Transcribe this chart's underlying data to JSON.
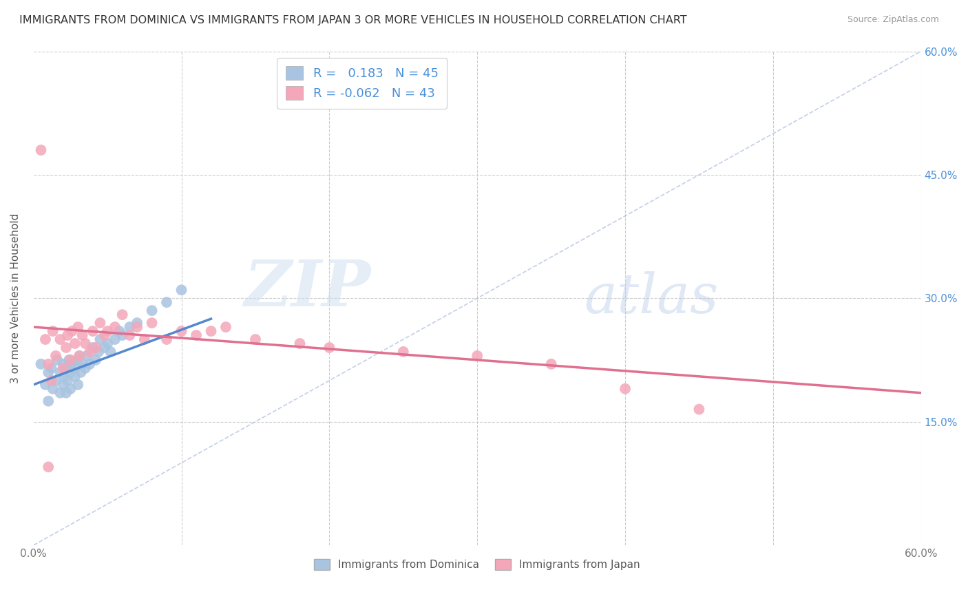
{
  "title": "IMMIGRANTS FROM DOMINICA VS IMMIGRANTS FROM JAPAN 3 OR MORE VEHICLES IN HOUSEHOLD CORRELATION CHART",
  "source": "Source: ZipAtlas.com",
  "ylabel": "3 or more Vehicles in Household",
  "xlim": [
    0.0,
    0.6
  ],
  "ylim": [
    0.0,
    0.6
  ],
  "r_dominica": 0.183,
  "n_dominica": 45,
  "r_japan": -0.062,
  "n_japan": 43,
  "dominica_color": "#a8c4e0",
  "japan_color": "#f4a7b9",
  "dominica_line_color": "#5588cc",
  "japan_line_color": "#e07090",
  "diag_line_color": "#aabbdd",
  "background_color": "#ffffff",
  "dom_x": [
    0.005,
    0.008,
    0.01,
    0.01,
    0.012,
    0.013,
    0.015,
    0.016,
    0.018,
    0.018,
    0.02,
    0.02,
    0.021,
    0.022,
    0.022,
    0.023,
    0.024,
    0.025,
    0.025,
    0.026,
    0.028,
    0.028,
    0.03,
    0.03,
    0.031,
    0.032,
    0.033,
    0.035,
    0.036,
    0.038,
    0.04,
    0.042,
    0.044,
    0.045,
    0.048,
    0.05,
    0.052,
    0.055,
    0.058,
    0.06,
    0.065,
    0.07,
    0.08,
    0.09,
    0.1
  ],
  "dom_y": [
    0.22,
    0.195,
    0.175,
    0.21,
    0.215,
    0.19,
    0.2,
    0.225,
    0.185,
    0.21,
    0.195,
    0.22,
    0.205,
    0.185,
    0.215,
    0.2,
    0.225,
    0.19,
    0.21,
    0.22,
    0.215,
    0.205,
    0.195,
    0.225,
    0.23,
    0.21,
    0.22,
    0.215,
    0.23,
    0.22,
    0.24,
    0.225,
    0.235,
    0.25,
    0.24,
    0.245,
    0.235,
    0.25,
    0.26,
    0.255,
    0.265,
    0.27,
    0.285,
    0.295,
    0.31
  ],
  "jap_x": [
    0.005,
    0.008,
    0.01,
    0.012,
    0.013,
    0.015,
    0.018,
    0.02,
    0.022,
    0.023,
    0.025,
    0.026,
    0.028,
    0.03,
    0.031,
    0.033,
    0.035,
    0.038,
    0.04,
    0.042,
    0.045,
    0.048,
    0.05,
    0.055,
    0.06,
    0.065,
    0.07,
    0.075,
    0.08,
    0.09,
    0.1,
    0.11,
    0.12,
    0.13,
    0.15,
    0.18,
    0.2,
    0.25,
    0.3,
    0.35,
    0.4,
    0.45,
    0.01
  ],
  "jap_y": [
    0.48,
    0.25,
    0.22,
    0.2,
    0.26,
    0.23,
    0.25,
    0.215,
    0.24,
    0.255,
    0.225,
    0.26,
    0.245,
    0.265,
    0.23,
    0.255,
    0.245,
    0.235,
    0.26,
    0.24,
    0.27,
    0.255,
    0.26,
    0.265,
    0.28,
    0.255,
    0.265,
    0.25,
    0.27,
    0.25,
    0.26,
    0.255,
    0.26,
    0.265,
    0.25,
    0.245,
    0.24,
    0.235,
    0.23,
    0.22,
    0.19,
    0.165,
    0.095
  ],
  "dom_line_x": [
    0.0,
    0.12
  ],
  "dom_line_y": [
    0.195,
    0.275
  ],
  "jap_line_x": [
    0.0,
    0.6
  ],
  "jap_line_y": [
    0.265,
    0.185
  ]
}
